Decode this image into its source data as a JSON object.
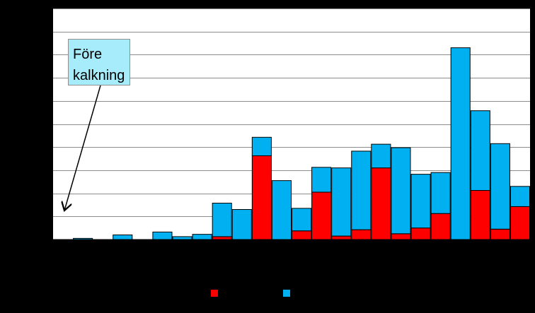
{
  "chart_data": {
    "type": "bar",
    "stacked": true,
    "categories": [
      "",
      "",
      "",
      "",
      "",
      "",
      "",
      "",
      "",
      "",
      "",
      "",
      "",
      "",
      "",
      "",
      "",
      "",
      "",
      "",
      "",
      "",
      "",
      ""
    ],
    "series": [
      {
        "color": "#ff0000",
        "values": [
          0,
          0,
          0,
          0,
          0,
          0,
          0,
          0,
          0.5,
          0,
          14.5,
          0,
          1.5,
          8.2,
          0.6,
          1.7,
          12.4,
          1.0,
          2.0,
          4.5,
          0,
          8.5,
          1.8,
          5.7
        ]
      },
      {
        "color": "#00b0f0",
        "values": [
          0,
          0.2,
          0,
          0.8,
          0,
          1.3,
          0.5,
          0.9,
          5.8,
          5.2,
          3.2,
          10.2,
          3.9,
          4.3,
          11.8,
          13.6,
          4.1,
          14.9,
          9.3,
          7.1,
          33.2,
          13.8,
          14.8,
          3.5
        ]
      }
    ],
    "ylim": [
      0,
      40
    ],
    "yticks": [
      0,
      4,
      8,
      12,
      16,
      20,
      24,
      28,
      32,
      36,
      40
    ],
    "grid": true,
    "legend": "bottom",
    "annotation": {
      "text_line1": "Före",
      "text_line2": "kalkning",
      "target_category_index": 0
    }
  },
  "colors": {
    "background": "#000000",
    "plot_background": "#ffffff",
    "gridline": "#8c8c8c",
    "callout_fill": "#a7ecfa",
    "bar_outline": "#000000"
  }
}
